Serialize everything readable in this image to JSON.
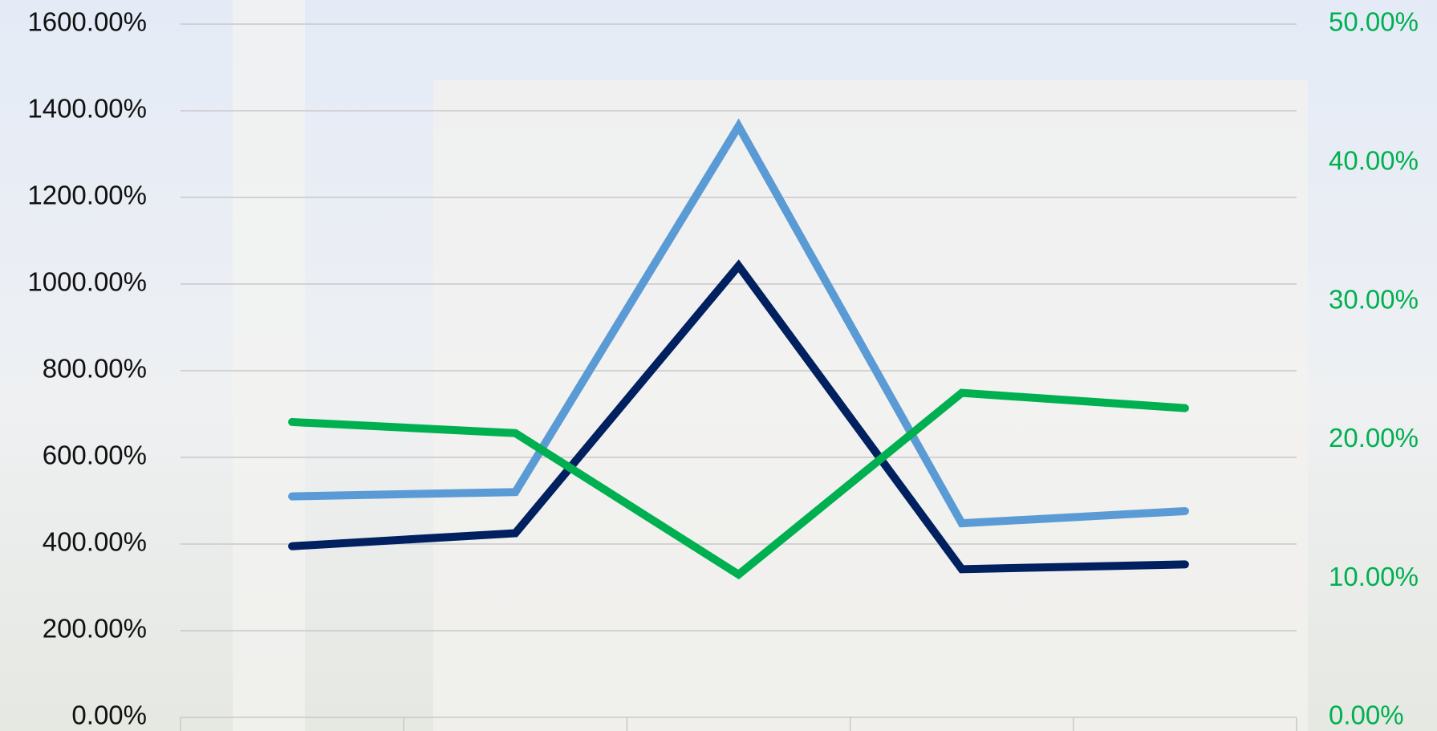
{
  "chart_data": {
    "type": "line",
    "categories": [
      null,
      null,
      null,
      null,
      null
    ],
    "series": [
      {
        "color": "#5b9bd5",
        "values": [
          510,
          520,
          1364,
          448,
          476
        ]
      },
      {
        "color": "#002060",
        "values": [
          395,
          425,
          1042,
          342,
          353
        ]
      },
      {
        "color": "#00b050",
        "axis": "y2",
        "values": [
          21.3,
          20.5,
          10.3,
          23.4,
          22.3
        ]
      }
    ],
    "ylim": [
      0,
      1600
    ],
    "yticks": [
      {
        "value": 0,
        "label": "0.00%"
      },
      {
        "value": 200,
        "label": "200.00%"
      },
      {
        "value": 400,
        "label": "400.00%"
      },
      {
        "value": 600,
        "label": "600.00%"
      },
      {
        "value": 800,
        "label": "800.00%"
      },
      {
        "value": 1000,
        "label": "1000.00%"
      },
      {
        "value": 1200,
        "label": "1200.00%"
      },
      {
        "value": 1400,
        "label": "1400.00%"
      },
      {
        "value": 1600,
        "label": "1600.00%"
      }
    ],
    "y2lim": [
      0,
      50
    ],
    "y2ticks": [
      {
        "value": 0,
        "label": "0.00%"
      },
      {
        "value": 10,
        "label": "10.00%"
      },
      {
        "value": 20,
        "label": "20.00%"
      },
      {
        "value": 30,
        "label": "30.00%"
      },
      {
        "value": 40,
        "label": "40.00%"
      },
      {
        "value": 50,
        "label": "50.00%"
      }
    ],
    "y2color": "#00b050",
    "grid": true
  }
}
